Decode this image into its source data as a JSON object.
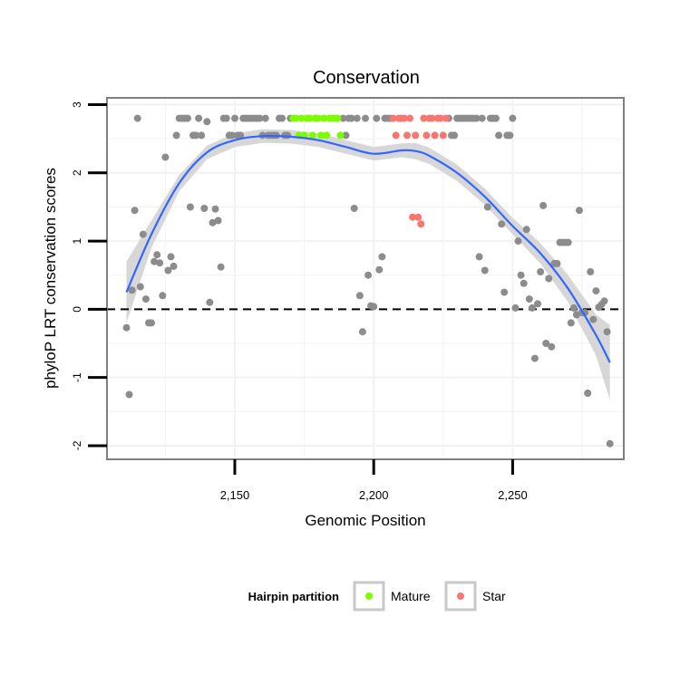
{
  "chart_data": {
    "type": "scatter",
    "title": "Conservation",
    "xlabel": "Genomic Position",
    "ylabel": "phyloP LRT conservation scores",
    "xlim": [
      2104,
      2290
    ],
    "ylim": [
      -2.2,
      3.1
    ],
    "x_ticks": [
      2150,
      2200,
      2250
    ],
    "x_tick_labels": [
      "2,150",
      "2,200",
      "2,250"
    ],
    "y_ticks": [
      -2,
      -1,
      0,
      1,
      2,
      3
    ],
    "y_tick_labels": [
      "-2",
      "-1",
      "0",
      "1",
      "2",
      "3"
    ],
    "reference_line": {
      "y": 0,
      "style": "dashed",
      "color": "#000000"
    },
    "grid": true,
    "legend": {
      "title": "Hairpin partition",
      "position": "bottom",
      "entries": [
        {
          "label": "Mature",
          "color": "#7CFC00"
        },
        {
          "label": "Star",
          "color": "#F8766D"
        }
      ]
    },
    "colors": {
      "other": "#8C8C8C",
      "Mature": "#7CFC00",
      "Star": "#F8766D",
      "smooth_line": "#3366FF",
      "ribbon": "#D3D3D3"
    },
    "series": [
      {
        "name": "Other",
        "color": "#8C8C8C",
        "points": [
          [
            2111,
            -0.27
          ],
          [
            2112,
            -1.25
          ],
          [
            2113,
            0.28
          ],
          [
            2114,
            1.45
          ],
          [
            2115,
            2.8
          ],
          [
            2116,
            0.33
          ],
          [
            2117,
            1.1
          ],
          [
            2118,
            0.15
          ],
          [
            2119,
            -0.2
          ],
          [
            2120,
            -0.2
          ],
          [
            2121,
            0.7
          ],
          [
            2122,
            0.8
          ],
          [
            2123,
            0.68
          ],
          [
            2124,
            0.2
          ],
          [
            2125,
            2.23
          ],
          [
            2126,
            0.57
          ],
          [
            2127,
            0.77
          ],
          [
            2128,
            0.63
          ],
          [
            2129,
            2.55
          ],
          [
            2130,
            2.8
          ],
          [
            2131,
            2.8
          ],
          [
            2132,
            2.8
          ],
          [
            2133,
            2.8
          ],
          [
            2134,
            1.5
          ],
          [
            2135,
            2.55
          ],
          [
            2136,
            2.55
          ],
          [
            2137,
            2.8
          ],
          [
            2138,
            2.55
          ],
          [
            2139,
            1.48
          ],
          [
            2140,
            2.75
          ],
          [
            2141,
            0.1
          ],
          [
            2142,
            1.27
          ],
          [
            2143,
            1.47
          ],
          [
            2144,
            1.3
          ],
          [
            2145,
            0.62
          ],
          [
            2146,
            2.8
          ],
          [
            2147,
            2.8
          ],
          [
            2148,
            2.55
          ],
          [
            2149,
            2.55
          ],
          [
            2150,
            2.8
          ],
          [
            2151,
            2.55
          ],
          [
            2152,
            2.55
          ],
          [
            2153,
            2.8
          ],
          [
            2154,
            2.8
          ],
          [
            2155,
            2.8
          ],
          [
            2156,
            2.8
          ],
          [
            2157,
            2.8
          ],
          [
            2158,
            2.8
          ],
          [
            2159,
            2.8
          ],
          [
            2160,
            2.55
          ],
          [
            2161,
            2.8
          ],
          [
            2162,
            2.55
          ],
          [
            2163,
            2.55
          ],
          [
            2164,
            2.55
          ],
          [
            2165,
            2.55
          ],
          [
            2166,
            2.8
          ],
          [
            2167,
            2.8
          ],
          [
            2168,
            2.55
          ],
          [
            2169,
            2.55
          ],
          [
            2170,
            2.8
          ],
          [
            2189,
            2.8
          ],
          [
            2190,
            2.55
          ],
          [
            2191,
            2.8
          ],
          [
            2192,
            2.8
          ],
          [
            2193,
            1.48
          ],
          [
            2194,
            2.8
          ],
          [
            2195,
            0.2
          ],
          [
            2196,
            -0.33
          ],
          [
            2197,
            2.8
          ],
          [
            2198,
            0.5
          ],
          [
            2199,
            0.05
          ],
          [
            2200,
            0.04
          ],
          [
            2201,
            2.8
          ],
          [
            2202,
            0.58
          ],
          [
            2203,
            0.77
          ],
          [
            2204,
            2.8
          ],
          [
            2205,
            2.8
          ],
          [
            2206,
            2.8
          ],
          [
            2227,
            2.8
          ],
          [
            2228,
            2.55
          ],
          [
            2229,
            2.55
          ],
          [
            2230,
            2.8
          ],
          [
            2231,
            2.8
          ],
          [
            2232,
            2.8
          ],
          [
            2233,
            2.8
          ],
          [
            2234,
            2.8
          ],
          [
            2235,
            2.8
          ],
          [
            2236,
            2.8
          ],
          [
            2237,
            2.8
          ],
          [
            2238,
            0.77
          ],
          [
            2239,
            2.8
          ],
          [
            2240,
            0.57
          ],
          [
            2241,
            1.5
          ],
          [
            2242,
            2.8
          ],
          [
            2243,
            2.8
          ],
          [
            2244,
            2.8
          ],
          [
            2245,
            2.55
          ],
          [
            2246,
            1.25
          ],
          [
            2247,
            0.25
          ],
          [
            2248,
            2.55
          ],
          [
            2249,
            2.55
          ],
          [
            2250,
            2.8
          ],
          [
            2251,
            0.02
          ],
          [
            2252,
            1.0
          ],
          [
            2253,
            0.5
          ],
          [
            2254,
            0.38
          ],
          [
            2255,
            1.17
          ],
          [
            2256,
            0.15
          ],
          [
            2257,
            0.02
          ],
          [
            2258,
            -0.72
          ],
          [
            2259,
            0.08
          ],
          [
            2260,
            0.55
          ],
          [
            2261,
            1.52
          ],
          [
            2262,
            -0.5
          ],
          [
            2263,
            0.45
          ],
          [
            2264,
            -0.55
          ],
          [
            2265,
            0.67
          ],
          [
            2266,
            0.67
          ],
          [
            2267,
            0.98
          ],
          [
            2268,
            0.98
          ],
          [
            2269,
            0.98
          ],
          [
            2270,
            0.98
          ],
          [
            2271,
            -0.2
          ],
          [
            2272,
            0.02
          ],
          [
            2273,
            -0.08
          ],
          [
            2274,
            1.45
          ],
          [
            2275,
            -0.05
          ],
          [
            2276,
            -0.05
          ],
          [
            2277,
            -1.23
          ],
          [
            2278,
            0.55
          ],
          [
            2279,
            -0.15
          ],
          [
            2280,
            0.27
          ],
          [
            2281,
            0.03
          ],
          [
            2282,
            0.07
          ],
          [
            2283,
            0.12
          ],
          [
            2284,
            -0.33
          ],
          [
            2285,
            -1.97
          ]
        ]
      },
      {
        "name": "Mature",
        "color": "#7CFC00",
        "points": [
          [
            2171,
            2.8
          ],
          [
            2172,
            2.8
          ],
          [
            2173,
            2.55
          ],
          [
            2174,
            2.8
          ],
          [
            2175,
            2.55
          ],
          [
            2176,
            2.8
          ],
          [
            2177,
            2.8
          ],
          [
            2178,
            2.55
          ],
          [
            2179,
            2.8
          ],
          [
            2180,
            2.8
          ],
          [
            2181,
            2.55
          ],
          [
            2182,
            2.8
          ],
          [
            2183,
            2.55
          ],
          [
            2184,
            2.8
          ],
          [
            2185,
            2.8
          ],
          [
            2186,
            2.8
          ],
          [
            2187,
            2.8
          ],
          [
            2188,
            2.55
          ]
        ]
      },
      {
        "name": "Star",
        "color": "#F8766D",
        "points": [
          [
            2207,
            2.8
          ],
          [
            2208,
            2.55
          ],
          [
            2209,
            2.8
          ],
          [
            2210,
            2.8
          ],
          [
            2211,
            2.8
          ],
          [
            2212,
            2.55
          ],
          [
            2213,
            2.8
          ],
          [
            2214,
            1.35
          ],
          [
            2215,
            2.55
          ],
          [
            2216,
            1.35
          ],
          [
            2217,
            1.25
          ],
          [
            2218,
            2.8
          ],
          [
            2219,
            2.55
          ],
          [
            2220,
            2.8
          ],
          [
            2221,
            2.8
          ],
          [
            2222,
            2.55
          ],
          [
            2223,
            2.8
          ],
          [
            2224,
            2.8
          ],
          [
            2225,
            2.55
          ],
          [
            2226,
            2.8
          ]
        ]
      }
    ],
    "smooth_fit": {
      "method": "loess",
      "points": [
        [
          2111,
          0.25
        ],
        [
          2120,
          1.1
        ],
        [
          2130,
          1.85
        ],
        [
          2140,
          2.3
        ],
        [
          2150,
          2.48
        ],
        [
          2160,
          2.54
        ],
        [
          2170,
          2.53
        ],
        [
          2180,
          2.48
        ],
        [
          2190,
          2.38
        ],
        [
          2200,
          2.28
        ],
        [
          2210,
          2.33
        ],
        [
          2215,
          2.32
        ],
        [
          2220,
          2.25
        ],
        [
          2230,
          2.0
        ],
        [
          2240,
          1.65
        ],
        [
          2250,
          1.22
        ],
        [
          2260,
          0.82
        ],
        [
          2270,
          0.3
        ],
        [
          2280,
          -0.38
        ],
        [
          2285,
          -0.78
        ]
      ],
      "band_halfwidth": [
        0.45,
        0.2,
        0.12,
        0.1,
        0.1,
        0.1,
        0.1,
        0.1,
        0.1,
        0.1,
        0.1,
        0.12,
        0.12,
        0.12,
        0.12,
        0.12,
        0.15,
        0.2,
        0.3,
        0.55
      ]
    }
  }
}
